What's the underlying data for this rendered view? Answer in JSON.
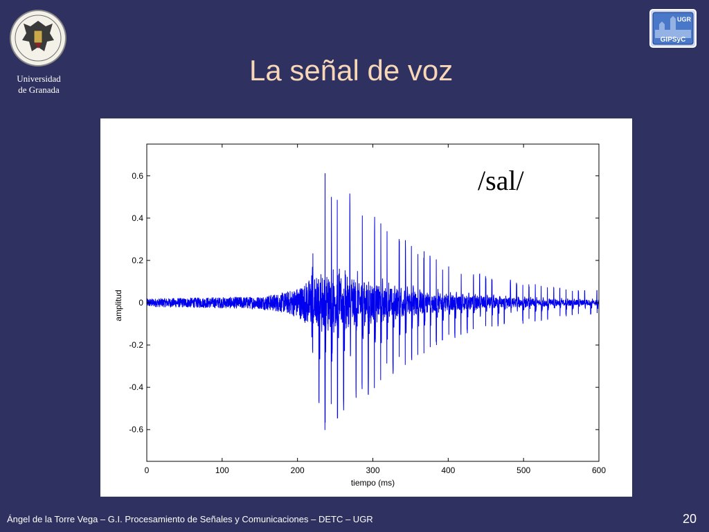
{
  "header": {
    "title": "La señal de voz",
    "university_line1": "Universidad",
    "university_line2": "de Granada",
    "group_logo_top": "UGR",
    "group_logo_bottom": "GIPSyC"
  },
  "footer": {
    "text": "Ángel de la Torre Vega – G.I. Procesamiento de Señales y Comunicaciones – DETC – UGR",
    "page_number": "20"
  },
  "chart_data": {
    "type": "line",
    "title": "",
    "xlabel": "tiempo (ms)",
    "ylabel": "amplitud",
    "annotation": "/sal/",
    "xlim": [
      0,
      600
    ],
    "ylim": [
      -0.75,
      0.75
    ],
    "xticks": [
      0,
      100,
      200,
      300,
      400,
      500,
      600
    ],
    "yticks": [
      0.6,
      0.4,
      0.2,
      0,
      -0.2,
      -0.4,
      -0.6
    ],
    "ytick_labels": [
      "0.6",
      "0.4",
      "0.2",
      "0",
      "-0.2",
      "-0.4",
      "-0.6"
    ],
    "grid": false,
    "legend": "none",
    "line_color": "#0000ee",
    "envelope": {
      "time_ms": [
        0,
        150,
        185,
        205,
        218,
        225,
        235,
        250,
        280,
        310,
        350,
        400,
        450,
        500,
        550,
        600
      ],
      "max_amplitude": [
        0.02,
        0.03,
        0.05,
        0.08,
        0.12,
        0.55,
        0.62,
        0.58,
        0.5,
        0.38,
        0.28,
        0.18,
        0.13,
        0.1,
        0.07,
        0.06
      ]
    },
    "series": [
      {
        "values_description_free": true
      }
    ]
  },
  "colors": {
    "background": "#2f3160",
    "title": "#f8d7b8",
    "waveform": "#0000ee"
  }
}
